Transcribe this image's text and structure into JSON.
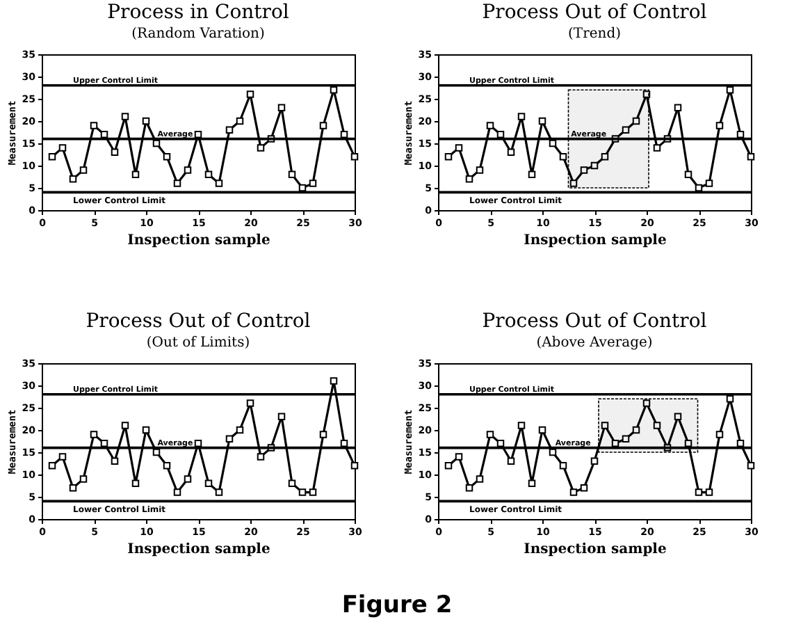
{
  "chart_data": [
    {
      "type": "line",
      "title": "Process in Control",
      "subtitle": "(Random Varation)",
      "xlabel": "Inspection sample",
      "ylabel": "Measurement",
      "x": [
        1,
        2,
        3,
        4,
        5,
        6,
        7,
        8,
        9,
        10,
        11,
        12,
        13,
        14,
        15,
        16,
        17,
        18,
        19,
        20,
        21,
        22,
        23,
        24,
        25,
        26,
        27,
        28,
        29,
        30
      ],
      "color": "#000000",
      "marker": "square",
      "values": [
        12,
        14,
        7,
        9,
        19,
        17,
        13,
        21,
        8,
        20,
        15,
        12,
        6,
        9,
        17,
        8,
        6,
        18,
        20,
        26,
        14,
        16,
        23,
        8,
        5,
        6,
        19,
        27,
        17,
        12
      ],
      "ref_lines": [
        {
          "axis": "y",
          "value": 28,
          "label": "Upper Control Limit"
        },
        {
          "axis": "y",
          "value": 16,
          "label": "Average"
        },
        {
          "axis": "y",
          "value": 4,
          "label": "Lower Control Limit"
        }
      ],
      "xlim": [
        0,
        30
      ],
      "ylim": [
        0,
        35
      ],
      "xticks": [
        0,
        5,
        10,
        15,
        20,
        25,
        30
      ],
      "yticks": [
        0,
        5,
        10,
        15,
        20,
        25,
        30,
        35
      ]
    },
    {
      "type": "line",
      "title": "Process Out of Control",
      "subtitle": "(Trend)",
      "xlabel": "Inspection sample",
      "ylabel": "Measurement",
      "x": [
        1,
        2,
        3,
        4,
        5,
        6,
        7,
        8,
        9,
        10,
        11,
        12,
        13,
        14,
        15,
        16,
        17,
        18,
        19,
        20,
        21,
        22,
        23,
        24,
        25,
        26,
        27,
        28,
        29,
        30
      ],
      "color": "#000000",
      "marker": "square",
      "values": [
        12,
        14,
        7,
        9,
        19,
        17,
        13,
        21,
        8,
        20,
        15,
        12,
        6,
        9,
        10,
        12,
        16,
        18,
        20,
        26,
        14,
        16,
        23,
        8,
        5,
        6,
        19,
        27,
        17,
        12
      ],
      "ref_lines": [
        {
          "axis": "y",
          "value": 28,
          "label": "Upper Control Limit"
        },
        {
          "axis": "y",
          "value": 16,
          "label": "Average"
        },
        {
          "axis": "y",
          "value": 4,
          "label": "Lower Control Limit"
        }
      ],
      "bands": [
        {
          "axis": "x",
          "from": 12.5,
          "to": 20.2
        }
      ],
      "xlim": [
        0,
        30
      ],
      "ylim": [
        0,
        35
      ],
      "xticks": [
        0,
        5,
        10,
        15,
        20,
        25,
        30
      ],
      "yticks": [
        0,
        5,
        10,
        15,
        20,
        25,
        30,
        35
      ]
    },
    {
      "type": "line",
      "title": "Process Out of Control",
      "subtitle": "(Out of Limits)",
      "xlabel": "Inspection sample",
      "ylabel": "Measurement",
      "x": [
        1,
        2,
        3,
        4,
        5,
        6,
        7,
        8,
        9,
        10,
        11,
        12,
        13,
        14,
        15,
        16,
        17,
        18,
        19,
        20,
        21,
        22,
        23,
        24,
        25,
        26,
        27,
        28,
        29,
        30
      ],
      "color": "#000000",
      "marker": "square",
      "values": [
        12,
        14,
        7,
        9,
        19,
        17,
        13,
        21,
        8,
        20,
        15,
        12,
        6,
        9,
        17,
        8,
        6,
        18,
        20,
        26,
        14,
        16,
        23,
        8,
        6,
        6,
        19,
        31,
        17,
        12
      ],
      "ref_lines": [
        {
          "axis": "y",
          "value": 28,
          "label": "Upper Control Limit"
        },
        {
          "axis": "y",
          "value": 16,
          "label": "Average"
        },
        {
          "axis": "y",
          "value": 4,
          "label": "Lower Control Limit"
        }
      ],
      "annotations": [
        "Figure 2"
      ],
      "xlim": [
        0,
        30
      ],
      "ylim": [
        0,
        35
      ],
      "xticks": [
        0,
        5,
        10,
        15,
        20,
        25,
        30
      ],
      "yticks": [
        0,
        5,
        10,
        15,
        20,
        25,
        30,
        35
      ]
    },
    {
      "type": "line",
      "title": "Process Out of Control",
      "subtitle": "(Above Average)",
      "xlabel": "Inspection sample",
      "ylabel": "Measurement",
      "x": [
        1,
        2,
        3,
        4,
        5,
        6,
        7,
        8,
        9,
        10,
        11,
        12,
        13,
        14,
        15,
        16,
        17,
        18,
        19,
        20,
        21,
        22,
        23,
        24,
        25,
        26,
        27,
        28,
        29,
        30
      ],
      "color": "#000000",
      "marker": "square",
      "values": [
        12,
        14,
        7,
        9,
        19,
        17,
        13,
        21,
        8,
        20,
        15,
        12,
        6,
        7,
        13,
        21,
        17,
        18,
        20,
        26,
        21,
        16,
        23,
        17,
        6,
        6,
        19,
        27,
        17,
        12
      ],
      "ref_lines": [
        {
          "axis": "y",
          "value": 28,
          "label": "Upper Control Limit"
        },
        {
          "axis": "y",
          "value": 16,
          "label": "Average"
        },
        {
          "axis": "y",
          "value": 4,
          "label": "Lower Control Limit"
        }
      ],
      "bands": [
        {
          "axis": "x",
          "from": 15.4,
          "to": 24.9
        }
      ],
      "xlim": [
        0,
        30
      ],
      "ylim": [
        0,
        35
      ],
      "xticks": [
        0,
        5,
        10,
        15,
        20,
        25,
        30
      ],
      "yticks": [
        0,
        5,
        10,
        15,
        20,
        25,
        30,
        35
      ]
    }
  ]
}
